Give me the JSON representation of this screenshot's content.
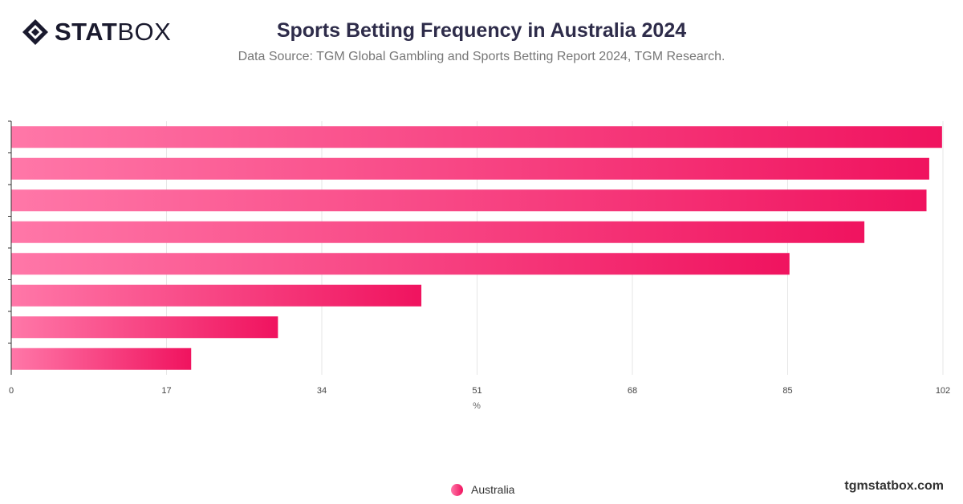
{
  "header": {
    "logo_bold": "STAT",
    "logo_light": "BOX",
    "title": "Sports Betting Frequency in Australia 2024",
    "subtitle": "Data Source: TGM Global Gambling and Sports Betting Report 2024, TGM Research."
  },
  "footer": {
    "site": "tgmstatbox.com"
  },
  "colors": {
    "bar_start": "#ff77a8",
    "bar_end": "#f0135f",
    "grid": "#e6e6e6",
    "axis": "#333333"
  },
  "chart_data": {
    "type": "bar",
    "orientation": "horizontal",
    "categories": [
      "",
      "",
      "",
      "",
      "",
      "",
      "",
      ""
    ],
    "series": [
      {
        "name": "Australia",
        "values": [
          101.9,
          100.5,
          100.2,
          93.4,
          85.2,
          44.9,
          29.2,
          19.7
        ]
      }
    ],
    "xlabel": "%",
    "xlim": [
      0,
      102
    ],
    "xticks": [
      0,
      17,
      34,
      51,
      68,
      85,
      102
    ],
    "grid": true,
    "legend_position": "bottom"
  }
}
